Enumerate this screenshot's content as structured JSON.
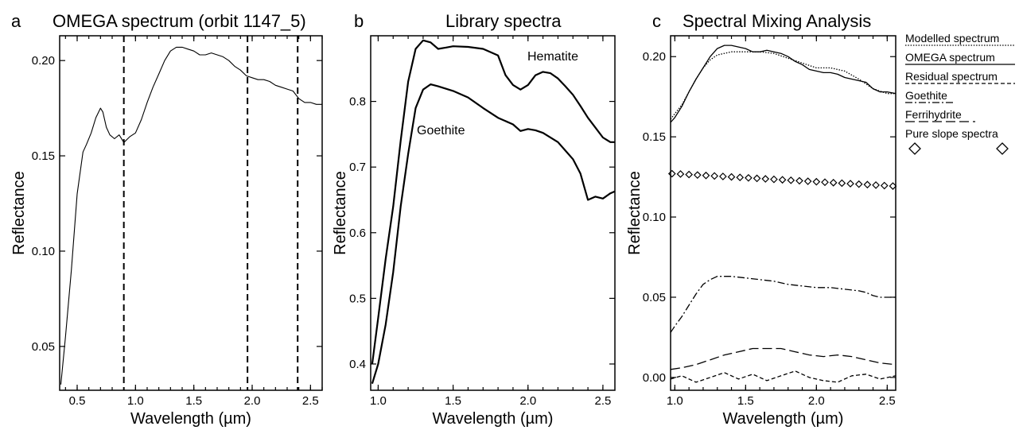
{
  "chart_data": [
    {
      "panel": "a",
      "type": "line",
      "title": "OMEGA spectrum (orbit 1147_5)",
      "xlabel": "Wavelength (µm)",
      "ylabel": "Reflectance",
      "xlim": [
        0.35,
        2.6
      ],
      "ylim": [
        0.027,
        0.213
      ],
      "xticks": [
        0.5,
        1.0,
        1.5,
        2.0,
        2.5
      ],
      "xtick_labels": [
        "0.5",
        "1.0",
        "1.5",
        "2.0",
        "2.5"
      ],
      "yticks": [
        0.05,
        0.1,
        0.15,
        0.2
      ],
      "ytick_labels": [
        "0.05",
        "0.10",
        "0.15",
        "0.20"
      ],
      "vlines": [
        0.9,
        1.96,
        2.39
      ],
      "series": [
        {
          "style": "solid",
          "x": [
            0.36,
            0.4,
            0.45,
            0.5,
            0.55,
            0.58,
            0.62,
            0.66,
            0.7,
            0.72,
            0.75,
            0.78,
            0.82,
            0.86,
            0.9,
            0.95,
            1.0,
            1.05,
            1.1,
            1.15,
            1.2,
            1.25,
            1.3,
            1.35,
            1.4,
            1.45,
            1.5,
            1.55,
            1.6,
            1.65,
            1.7,
            1.75,
            1.8,
            1.85,
            1.9,
            1.95,
            2.0,
            2.05,
            2.1,
            2.15,
            2.2,
            2.25,
            2.3,
            2.35,
            2.4,
            2.45,
            2.5,
            2.55,
            2.6
          ],
          "y": [
            0.03,
            0.055,
            0.09,
            0.13,
            0.152,
            0.156,
            0.162,
            0.17,
            0.175,
            0.173,
            0.165,
            0.161,
            0.159,
            0.161,
            0.157,
            0.16,
            0.162,
            0.169,
            0.178,
            0.186,
            0.193,
            0.2,
            0.205,
            0.207,
            0.207,
            0.206,
            0.205,
            0.203,
            0.203,
            0.204,
            0.203,
            0.202,
            0.2,
            0.197,
            0.195,
            0.192,
            0.191,
            0.19,
            0.19,
            0.189,
            0.187,
            0.186,
            0.185,
            0.184,
            0.18,
            0.178,
            0.178,
            0.177,
            0.177
          ]
        }
      ]
    },
    {
      "panel": "b",
      "type": "line",
      "title": "Library spectra",
      "xlabel": "Wavelength (µm)",
      "ylabel": "Reflectance",
      "xlim": [
        0.95,
        2.58
      ],
      "ylim": [
        0.36,
        0.9
      ],
      "xticks": [
        1.0,
        1.5,
        2.0,
        2.5
      ],
      "xtick_labels": [
        "1.0",
        "1.5",
        "2.0",
        "2.5"
      ],
      "yticks": [
        0.4,
        0.5,
        0.6,
        0.7,
        0.8
      ],
      "ytick_labels": [
        "0.4",
        "0.5",
        "0.6",
        "0.7",
        "0.8"
      ],
      "series": [
        {
          "label": "Hematite",
          "style": "solid",
          "x": [
            0.96,
            1.0,
            1.05,
            1.1,
            1.15,
            1.2,
            1.25,
            1.3,
            1.35,
            1.4,
            1.45,
            1.5,
            1.6,
            1.7,
            1.8,
            1.85,
            1.9,
            1.95,
            2.0,
            2.05,
            2.1,
            2.15,
            2.2,
            2.25,
            2.3,
            2.35,
            2.4,
            2.45,
            2.5,
            2.55,
            2.58
          ],
          "y": [
            0.4,
            0.47,
            0.56,
            0.64,
            0.74,
            0.83,
            0.88,
            0.893,
            0.89,
            0.88,
            0.882,
            0.884,
            0.883,
            0.88,
            0.87,
            0.84,
            0.825,
            0.818,
            0.825,
            0.84,
            0.845,
            0.843,
            0.835,
            0.823,
            0.81,
            0.793,
            0.775,
            0.76,
            0.745,
            0.738,
            0.738
          ]
        },
        {
          "label": "Goethite",
          "style": "solid",
          "x": [
            0.96,
            1.0,
            1.05,
            1.1,
            1.15,
            1.2,
            1.25,
            1.3,
            1.35,
            1.4,
            1.5,
            1.6,
            1.7,
            1.8,
            1.9,
            1.95,
            2.0,
            2.05,
            2.1,
            2.2,
            2.25,
            2.3,
            2.35,
            2.4,
            2.45,
            2.5,
            2.55,
            2.58
          ],
          "y": [
            0.37,
            0.4,
            0.46,
            0.54,
            0.64,
            0.72,
            0.79,
            0.818,
            0.826,
            0.823,
            0.816,
            0.806,
            0.79,
            0.775,
            0.765,
            0.755,
            0.758,
            0.756,
            0.752,
            0.738,
            0.725,
            0.712,
            0.69,
            0.65,
            0.655,
            0.652,
            0.66,
            0.663
          ]
        }
      ]
    },
    {
      "panel": "c",
      "type": "line",
      "title": "Spectral Mixing Analysis",
      "xlabel": "Wavelength (µm)",
      "ylabel": "Reflectance",
      "xlim": [
        0.97,
        2.56
      ],
      "ylim": [
        -0.008,
        0.213
      ],
      "xticks": [
        1.0,
        1.5,
        2.0,
        2.5
      ],
      "xtick_labels": [
        "1.0",
        "1.5",
        "2.0",
        "2.5"
      ],
      "yticks": [
        0.0,
        0.05,
        0.1,
        0.15,
        0.2
      ],
      "ytick_labels": [
        "0.00",
        "0.05",
        "0.10",
        "0.15",
        "0.20"
      ],
      "series": [
        {
          "name": "Modelled spectrum",
          "style": "dotted",
          "x": [
            0.97,
            1.05,
            1.1,
            1.15,
            1.2,
            1.25,
            1.3,
            1.35,
            1.4,
            1.5,
            1.6,
            1.7,
            1.8,
            1.9,
            2.0,
            2.1,
            2.2,
            2.3,
            2.4,
            2.5,
            2.56
          ],
          "y": [
            0.161,
            0.17,
            0.178,
            0.186,
            0.193,
            0.198,
            0.201,
            0.202,
            0.203,
            0.203,
            0.203,
            0.202,
            0.199,
            0.196,
            0.193,
            0.193,
            0.191,
            0.186,
            0.18,
            0.177,
            0.177
          ]
        },
        {
          "name": "OMEGA spectrum",
          "style": "solid",
          "x": [
            0.97,
            1.0,
            1.05,
            1.1,
            1.15,
            1.2,
            1.25,
            1.3,
            1.35,
            1.4,
            1.45,
            1.5,
            1.55,
            1.6,
            1.65,
            1.7,
            1.75,
            1.8,
            1.85,
            1.9,
            1.95,
            2.0,
            2.05,
            2.1,
            2.15,
            2.2,
            2.25,
            2.3,
            2.35,
            2.4,
            2.45,
            2.5,
            2.56
          ],
          "y": [
            0.159,
            0.162,
            0.169,
            0.178,
            0.186,
            0.193,
            0.2,
            0.205,
            0.207,
            0.207,
            0.206,
            0.205,
            0.203,
            0.203,
            0.204,
            0.203,
            0.202,
            0.2,
            0.197,
            0.195,
            0.192,
            0.191,
            0.19,
            0.19,
            0.189,
            0.187,
            0.186,
            0.185,
            0.184,
            0.18,
            0.178,
            0.178,
            0.177
          ]
        },
        {
          "name": "Residual spectrum",
          "style": "dashed",
          "x": [
            0.97,
            1.05,
            1.15,
            1.25,
            1.35,
            1.45,
            1.55,
            1.65,
            1.75,
            1.85,
            1.95,
            2.05,
            2.15,
            2.25,
            2.35,
            2.45,
            2.56
          ],
          "y": [
            -0.001,
            0.001,
            -0.003,
            0.0,
            0.003,
            -0.001,
            0.002,
            -0.002,
            0.001,
            0.004,
            0.0,
            -0.002,
            -0.003,
            0.001,
            0.002,
            -0.001,
            0.001
          ]
        },
        {
          "name": "Goethite",
          "style": "dashdot",
          "x": [
            0.97,
            1.0,
            1.05,
            1.1,
            1.15,
            1.2,
            1.25,
            1.3,
            1.35,
            1.4,
            1.5,
            1.6,
            1.7,
            1.8,
            1.9,
            2.0,
            2.1,
            2.2,
            2.3,
            2.35,
            2.4,
            2.45,
            2.5,
            2.56
          ],
          "y": [
            0.028,
            0.032,
            0.038,
            0.045,
            0.052,
            0.058,
            0.061,
            0.063,
            0.063,
            0.063,
            0.062,
            0.061,
            0.06,
            0.058,
            0.057,
            0.056,
            0.056,
            0.055,
            0.054,
            0.053,
            0.051,
            0.05,
            0.05,
            0.05
          ]
        },
        {
          "name": "Ferrihydrite",
          "style": "longdash",
          "x": [
            0.97,
            1.05,
            1.15,
            1.25,
            1.35,
            1.45,
            1.55,
            1.65,
            1.75,
            1.85,
            1.95,
            2.05,
            2.15,
            2.25,
            2.35,
            2.45,
            2.56
          ],
          "y": [
            0.005,
            0.006,
            0.008,
            0.011,
            0.014,
            0.016,
            0.018,
            0.018,
            0.018,
            0.016,
            0.014,
            0.013,
            0.014,
            0.013,
            0.011,
            0.009,
            0.008
          ]
        },
        {
          "name": "Pure slope spectra",
          "style": "diamond",
          "x": [
            0.98,
            1.04,
            1.1,
            1.16,
            1.22,
            1.28,
            1.34,
            1.4,
            1.46,
            1.52,
            1.58,
            1.64,
            1.7,
            1.76,
            1.82,
            1.88,
            1.94,
            2.0,
            2.06,
            2.12,
            2.18,
            2.24,
            2.3,
            2.36,
            2.42,
            2.48,
            2.54
          ],
          "y": [
            0.127,
            0.1268,
            0.1265,
            0.1262,
            0.1259,
            0.1256,
            0.1253,
            0.125,
            0.1247,
            0.1244,
            0.1241,
            0.1238,
            0.1235,
            0.1232,
            0.1229,
            0.1226,
            0.1223,
            0.122,
            0.1217,
            0.1214,
            0.1211,
            0.1208,
            0.1205,
            0.1202,
            0.1199,
            0.1196,
            0.1193
          ]
        }
      ]
    }
  ]
}
